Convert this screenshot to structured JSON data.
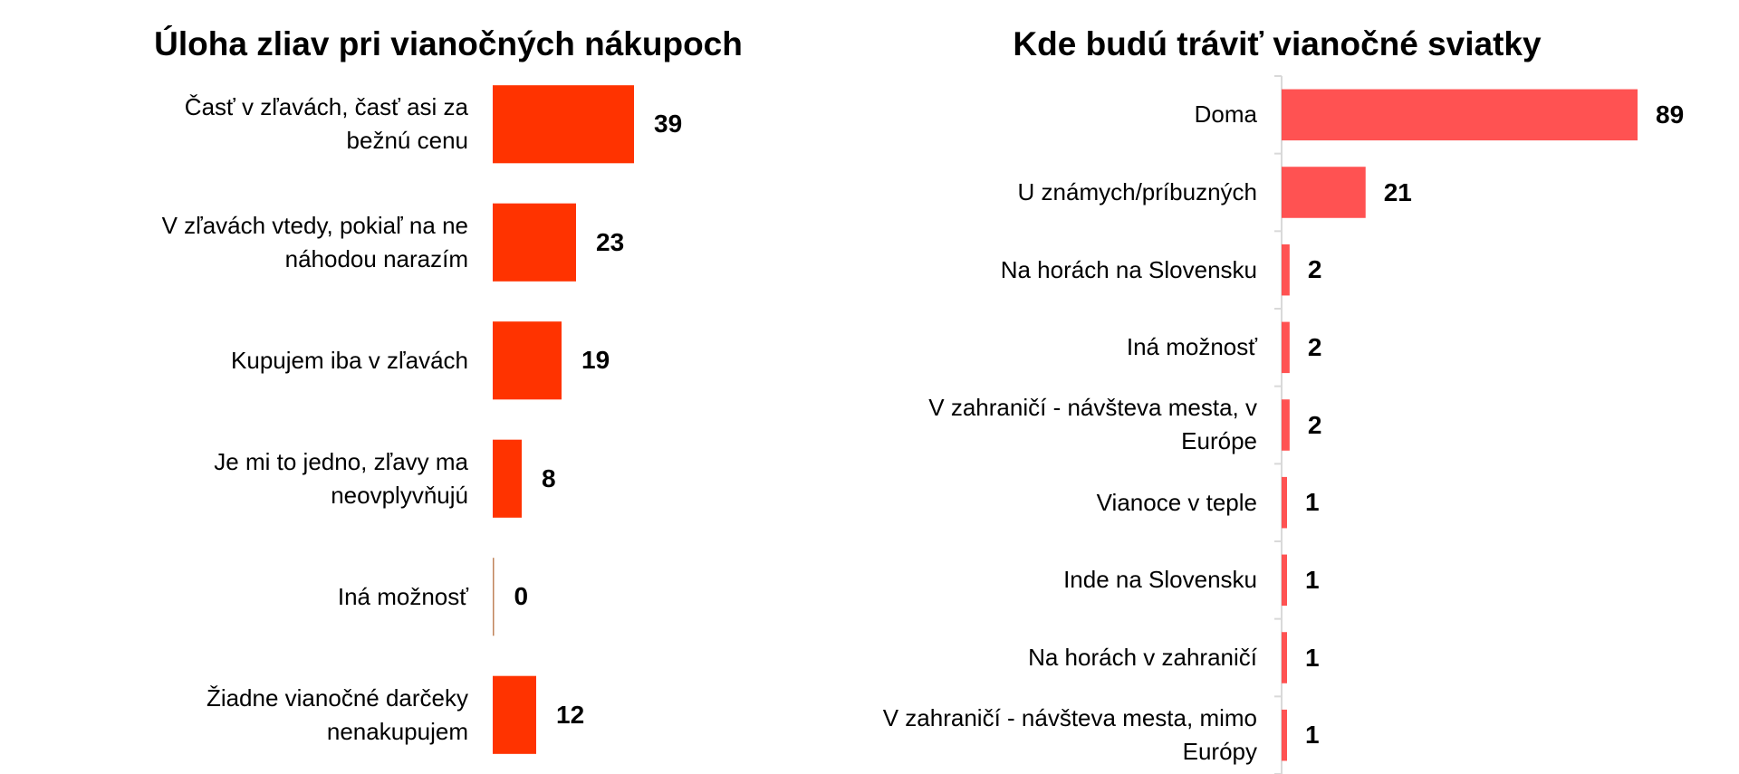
{
  "colors": {
    "left_bar": "#ff3300",
    "left_zero_bar": "#c0835a",
    "right_bar": "#ff5252",
    "axis": "#d9d9d9"
  },
  "chart_data": [
    {
      "type": "bar",
      "orientation": "horizontal",
      "title": "Úloha zliav pri vianočných nákupoch",
      "categories": [
        "Časť v zľavách, časť asi za bežnú cenu",
        "V zľavách vtedy, pokiaľ na ne náhodou narazím",
        "Kupujem iba v zľavách",
        "Je mi to jedno, zľavy ma neovplyvňujú",
        "Iná možnosť",
        "Žiadne vianočné  darčeky nenakupujem"
      ],
      "values": [
        39,
        23,
        19,
        8,
        0,
        12
      ],
      "data_labels": [
        "39",
        "23",
        "19",
        "8",
        "0",
        "12"
      ],
      "xlim": [
        0,
        40
      ],
      "grid": false
    },
    {
      "type": "bar",
      "orientation": "horizontal",
      "title": "Kde budú tráviť vianočné sviatky",
      "categories": [
        "Doma",
        "U známych/príbuzných",
        "Na horách na Slovensku",
        "Iná možnosť",
        "V zahraničí - návšteva mesta,  v Európe",
        "Vianoce v teple",
        "Inde na Slovensku",
        "Na horách v zahraničí",
        "V zahraničí - návšteva mesta, mimo Európy"
      ],
      "values": [
        89,
        21,
        2,
        2,
        2,
        1,
        1,
        1,
        1
      ],
      "data_labels": [
        "89",
        "21",
        "2",
        "2",
        "2",
        "1",
        "1",
        "1",
        "1"
      ],
      "xlim": [
        0,
        89
      ],
      "grid": false
    }
  ]
}
